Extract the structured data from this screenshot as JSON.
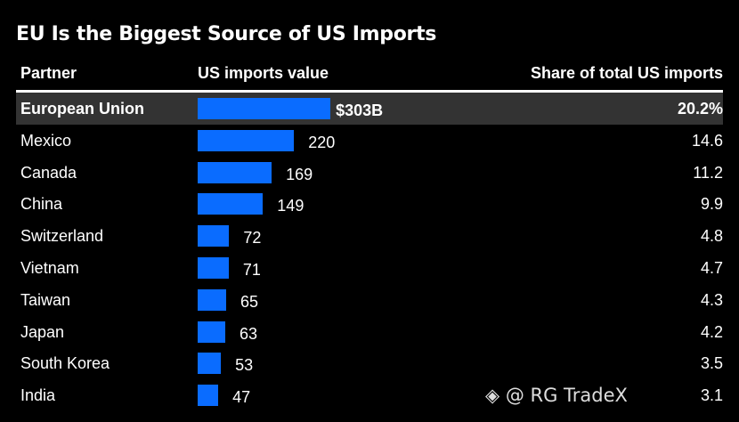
{
  "chart_data": {
    "type": "bar",
    "title": "EU Is the Biggest Source of US Imports",
    "columns": [
      "Partner",
      "US imports value",
      "Share of total US imports"
    ],
    "categories": [
      "European Union",
      "Mexico",
      "Canada",
      "China",
      "Switzerland",
      "Vietnam",
      "Taiwan",
      "Japan",
      "South Korea",
      "India"
    ],
    "values": [
      303,
      220,
      169,
      149,
      72,
      71,
      65,
      63,
      53,
      47
    ],
    "value_labels": [
      "$303B",
      "220",
      "169",
      "149",
      "72",
      "71",
      "65",
      "63",
      "53",
      "47"
    ],
    "shares": [
      "20.2%",
      "14.6",
      "11.2",
      "9.9",
      "4.8",
      "4.7",
      "4.3",
      "4.2",
      "3.5",
      "3.1"
    ],
    "highlight": "European Union",
    "bar_color": "#0a6cff"
  },
  "watermark": "@ RG TradeX"
}
